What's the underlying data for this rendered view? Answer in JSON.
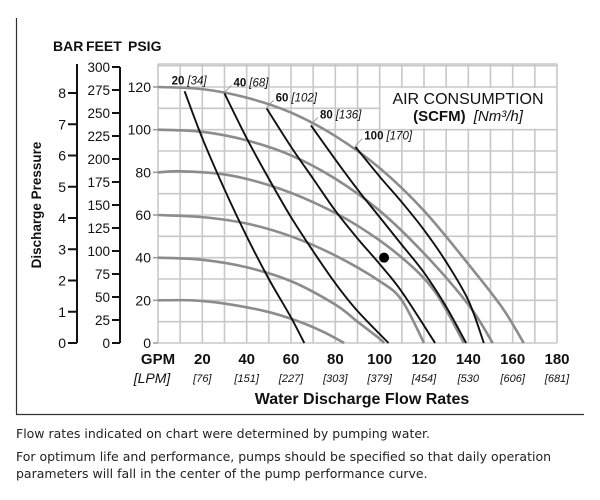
{
  "chart_data": {
    "type": "line",
    "title": "",
    "xlabel": "Water Discharge Flow Rates",
    "ylabel": "Discharge Pressure",
    "xlim": [
      0,
      180
    ],
    "ylim": [
      0,
      130
    ],
    "grid": true,
    "x_unit_primary": "GPM",
    "x_unit_secondary": "[LPM]",
    "x_ticks": [
      {
        "gpm": "20",
        "lpm": "[76]",
        "value": 20
      },
      {
        "gpm": "40",
        "lpm": "[151]",
        "value": 40
      },
      {
        "gpm": "60",
        "lpm": "[227]",
        "value": 60
      },
      {
        "gpm": "80",
        "lpm": "[303]",
        "value": 80
      },
      {
        "gpm": "100",
        "lpm": "[379]",
        "value": 100
      },
      {
        "gpm": "120",
        "lpm": "[454]",
        "value": 120
      },
      {
        "gpm": "140",
        "lpm": "[530",
        "value": 140
      },
      {
        "gpm": "160",
        "lpm": "[606]",
        "value": 160
      },
      {
        "gpm": "180",
        "lpm": "[681]",
        "value": 180
      }
    ],
    "y_axes": {
      "headers": [
        "BAR",
        "FEET",
        "PSIG"
      ],
      "bar_ticks": [
        "0",
        "1",
        "2",
        "3",
        "4",
        "5",
        "6",
        "7",
        "8"
      ],
      "feet_ticks": [
        "0",
        "25",
        "50",
        "75",
        "100",
        "125",
        "150",
        "175",
        "200",
        "225",
        "250",
        "275",
        "300"
      ],
      "psig_ticks": [
        "0",
        "20",
        "40",
        "60",
        "80",
        "100",
        "120"
      ]
    },
    "legend": {
      "title": "AIR CONSUMPTION",
      "unit_bold": "(SCFM)",
      "unit_italic": "[Nm³/h]",
      "placement": "top-right"
    },
    "pressure_curves": [
      {
        "name": "120 psig supply",
        "points": [
          [
            0,
            120
          ],
          [
            20,
            119
          ],
          [
            40,
            115
          ],
          [
            60,
            108
          ],
          [
            80,
            97
          ],
          [
            100,
            82
          ],
          [
            120,
            62
          ],
          [
            140,
            37
          ],
          [
            155,
            17
          ],
          [
            165,
            0
          ]
        ]
      },
      {
        "name": "100 psig supply",
        "points": [
          [
            0,
            100
          ],
          [
            20,
            99
          ],
          [
            40,
            95
          ],
          [
            60,
            88
          ],
          [
            80,
            77
          ],
          [
            100,
            62
          ],
          [
            120,
            42
          ],
          [
            140,
            18
          ],
          [
            151,
            0
          ]
        ]
      },
      {
        "name": "80 psig supply",
        "points": [
          [
            0,
            80
          ],
          [
            10,
            80.5
          ],
          [
            30,
            79
          ],
          [
            50,
            74
          ],
          [
            70,
            66
          ],
          [
            90,
            55
          ],
          [
            110,
            40
          ],
          [
            125,
            24
          ],
          [
            138,
            0
          ]
        ]
      },
      {
        "name": "60 psig supply",
        "points": [
          [
            0,
            60
          ],
          [
            20,
            59
          ],
          [
            40,
            56
          ],
          [
            60,
            50
          ],
          [
            80,
            41
          ],
          [
            100,
            29
          ],
          [
            110,
            20
          ],
          [
            120,
            0
          ]
        ]
      },
      {
        "name": "40 psig supply",
        "points": [
          [
            0,
            40
          ],
          [
            20,
            39
          ],
          [
            40,
            35.5
          ],
          [
            60,
            29
          ],
          [
            80,
            18
          ],
          [
            90,
            10
          ],
          [
            100,
            2
          ],
          [
            102,
            0
          ]
        ]
      },
      {
        "name": "20 psig supply",
        "points": [
          [
            0,
            20
          ],
          [
            15,
            20
          ],
          [
            30,
            18.5
          ],
          [
            50,
            14.5
          ],
          [
            65,
            9.5
          ],
          [
            75,
            5
          ],
          [
            84,
            0
          ]
        ]
      }
    ],
    "air_consumption_curves": [
      {
        "label": "20",
        "label_metric": "[34]",
        "points": [
          [
            12,
            118
          ],
          [
            20,
            96
          ],
          [
            30,
            72
          ],
          [
            40,
            50
          ],
          [
            50,
            30
          ],
          [
            60,
            12
          ],
          [
            66,
            0
          ]
        ]
      },
      {
        "label": "40",
        "label_metric": "[68]",
        "points": [
          [
            30,
            117
          ],
          [
            40,
            96
          ],
          [
            50,
            77
          ],
          [
            60,
            59
          ],
          [
            70,
            43
          ],
          [
            80,
            28
          ],
          [
            90,
            15
          ],
          [
            104,
            0
          ]
        ]
      },
      {
        "label": "60",
        "label_metric": "[102]",
        "points": [
          [
            49,
            110
          ],
          [
            60,
            92
          ],
          [
            70,
            77
          ],
          [
            80,
            62
          ],
          [
            90,
            49
          ],
          [
            100,
            37
          ],
          [
            110,
            24
          ],
          [
            125,
            0
          ]
        ]
      },
      {
        "label": "80",
        "label_metric": "[136]",
        "points": [
          [
            69,
            102
          ],
          [
            80,
            86
          ],
          [
            90,
            72
          ],
          [
            100,
            59
          ],
          [
            110,
            46
          ],
          [
            120,
            33
          ],
          [
            130,
            17
          ],
          [
            139,
            0
          ]
        ]
      },
      {
        "label": "100",
        "label_metric": "[170]",
        "points": [
          [
            89,
            92
          ],
          [
            100,
            78
          ],
          [
            110,
            66
          ],
          [
            120,
            53
          ],
          [
            130,
            38
          ],
          [
            140,
            20
          ],
          [
            147,
            0
          ]
        ]
      }
    ],
    "marker_point": {
      "gpm": 102,
      "psig": 40
    }
  },
  "notes": [
    "Flow rates indicated on chart were determined by pumping water.",
    "For optimum life and performance, pumps should be specified so that daily operation parameters will fall in the center of the pump performance curve."
  ]
}
